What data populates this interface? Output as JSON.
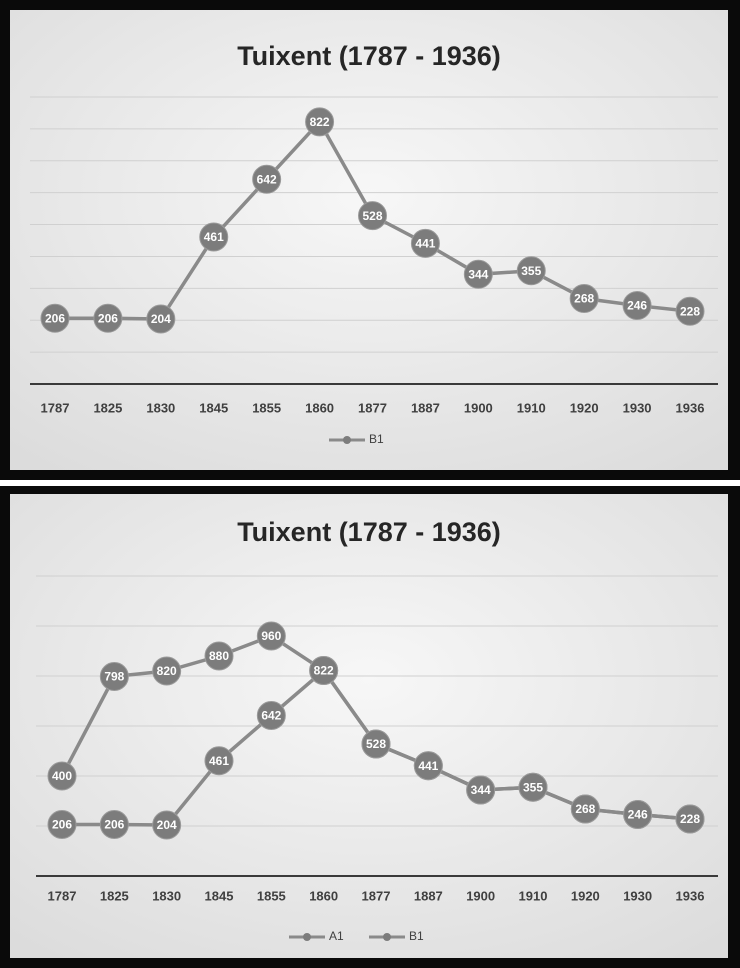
{
  "chart_data": [
    {
      "type": "line",
      "title": "Tuixent (1787 - 1936)",
      "categories": [
        "1787",
        "1825",
        "1830",
        "1845",
        "1855",
        "1860",
        "1877",
        "1887",
        "1900",
        "1910",
        "1920",
        "1930",
        "1936"
      ],
      "series": [
        {
          "name": "B1",
          "color": "#8a8a8a",
          "values": [
            206,
            206,
            204,
            461,
            642,
            822,
            528,
            441,
            344,
            355,
            268,
            246,
            228
          ]
        }
      ],
      "ylim": [
        0,
        900
      ],
      "yticks": [
        0,
        100,
        200,
        300,
        400,
        500,
        600,
        700,
        800,
        900
      ],
      "grid": true,
      "legend": "bottom"
    },
    {
      "type": "line",
      "title": "Tuixent (1787 - 1936)",
      "categories": [
        "1787",
        "1825",
        "1830",
        "1845",
        "1855",
        "1860",
        "1877",
        "1887",
        "1900",
        "1910",
        "1920",
        "1930",
        "1936"
      ],
      "series": [
        {
          "name": "A1",
          "color": "#8a8a8a",
          "values": [
            400,
            798,
            820,
            880,
            960,
            822,
            528,
            441,
            344,
            355,
            268,
            246,
            228
          ]
        },
        {
          "name": "B1",
          "color": "#8a8a8a",
          "values": [
            206,
            206,
            204,
            461,
            642,
            822,
            528,
            441,
            344,
            355,
            268,
            246,
            228
          ]
        }
      ],
      "ylim": [
        0,
        1200
      ],
      "yticks": [
        0,
        200,
        400,
        600,
        800,
        1000,
        1200
      ],
      "grid": true,
      "legend": "bottom"
    }
  ]
}
